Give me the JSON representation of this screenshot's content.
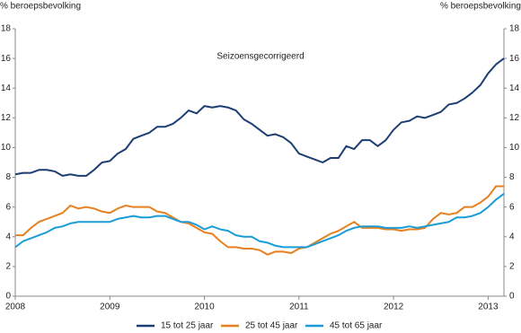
{
  "chart_data": {
    "type": "line",
    "annotation": "Seizoensgecorrigeerd",
    "y_label": "% beroepsbevolking",
    "y2_label": "% beroepsbevolking",
    "x": [
      2008,
      2008.083,
      2008.167,
      2008.25,
      2008.333,
      2008.417,
      2008.5,
      2008.583,
      2008.667,
      2008.75,
      2008.833,
      2008.917,
      2009,
      2009.083,
      2009.167,
      2009.25,
      2009.333,
      2009.417,
      2009.5,
      2009.583,
      2009.667,
      2009.75,
      2009.833,
      2009.917,
      2010,
      2010.083,
      2010.167,
      2010.25,
      2010.333,
      2010.417,
      2010.5,
      2010.583,
      2010.667,
      2010.75,
      2010.833,
      2010.917,
      2011,
      2011.083,
      2011.167,
      2011.25,
      2011.333,
      2011.417,
      2011.5,
      2011.583,
      2011.667,
      2011.75,
      2011.833,
      2011.917,
      2012,
      2012.083,
      2012.167,
      2012.25,
      2012.333,
      2012.417,
      2012.5,
      2012.583,
      2012.667,
      2012.75,
      2012.833,
      2012.917,
      2013,
      2013.083,
      2013.167
    ],
    "series": [
      {
        "name": "15 tot 25 jaar",
        "color": "#1d3e73",
        "values": [
          8.2,
          8.3,
          8.3,
          8.5,
          8.5,
          8.4,
          8.1,
          8.2,
          8.1,
          8.1,
          8.5,
          9.0,
          9.1,
          9.6,
          9.9,
          10.6,
          10.8,
          11.0,
          11.4,
          11.4,
          11.6,
          12.0,
          12.5,
          12.3,
          12.8,
          12.7,
          12.8,
          12.7,
          12.5,
          11.9,
          11.6,
          11.2,
          10.8,
          10.9,
          10.7,
          10.3,
          9.6,
          9.4,
          9.2,
          9.0,
          9.3,
          9.3,
          10.1,
          9.9,
          10.5,
          10.5,
          10.1,
          10.5,
          11.2,
          11.7,
          11.8,
          12.1,
          12.0,
          12.2,
          12.4,
          12.9,
          13.0,
          13.3,
          13.7,
          14.2,
          15.0,
          15.6,
          16.0
        ]
      },
      {
        "name": "25 tot 45 jaar",
        "color": "#e8801f",
        "values": [
          4.1,
          4.1,
          4.6,
          5.0,
          5.2,
          5.4,
          5.6,
          6.1,
          5.9,
          6.0,
          5.9,
          5.7,
          5.6,
          5.9,
          6.1,
          6.0,
          6.0,
          6.0,
          5.7,
          5.6,
          5.3,
          5.0,
          4.9,
          4.6,
          4.3,
          4.2,
          3.7,
          3.3,
          3.3,
          3.2,
          3.2,
          3.1,
          2.8,
          3.0,
          3.0,
          2.9,
          3.2,
          3.3,
          3.6,
          3.9,
          4.2,
          4.4,
          4.7,
          5.0,
          4.6,
          4.6,
          4.6,
          4.5,
          4.5,
          4.4,
          4.5,
          4.5,
          4.6,
          5.2,
          5.6,
          5.5,
          5.6,
          6.0,
          6.0,
          6.3,
          6.7,
          7.4,
          7.4
        ]
      },
      {
        "name": "45 tot 65 jaar",
        "color": "#1b9cd8",
        "values": [
          3.3,
          3.7,
          3.9,
          4.1,
          4.3,
          4.6,
          4.7,
          4.9,
          5.0,
          5.0,
          5.0,
          5.0,
          5.0,
          5.2,
          5.3,
          5.4,
          5.3,
          5.3,
          5.4,
          5.4,
          5.2,
          5.0,
          5.0,
          4.8,
          4.5,
          4.7,
          4.5,
          4.4,
          4.1,
          4.0,
          4.0,
          3.7,
          3.6,
          3.4,
          3.3,
          3.3,
          3.3,
          3.3,
          3.5,
          3.7,
          3.9,
          4.1,
          4.4,
          4.6,
          4.7,
          4.7,
          4.7,
          4.6,
          4.6,
          4.6,
          4.7,
          4.6,
          4.7,
          4.8,
          4.9,
          5.0,
          5.3,
          5.3,
          5.4,
          5.6,
          6.0,
          6.5,
          6.9
        ]
      }
    ],
    "xlim": [
      2008,
      2013.167
    ],
    "xticks": [
      2008,
      2009,
      2010,
      2011,
      2012,
      2013
    ],
    "ylim": [
      0,
      18
    ],
    "yticks": [
      0,
      2,
      4,
      6,
      8,
      10,
      12,
      14,
      16,
      18
    ],
    "y2lim": [
      0,
      18
    ],
    "y2ticks": [
      0,
      2,
      4,
      6,
      8,
      10,
      12,
      14,
      16,
      18
    ],
    "grid": false
  }
}
